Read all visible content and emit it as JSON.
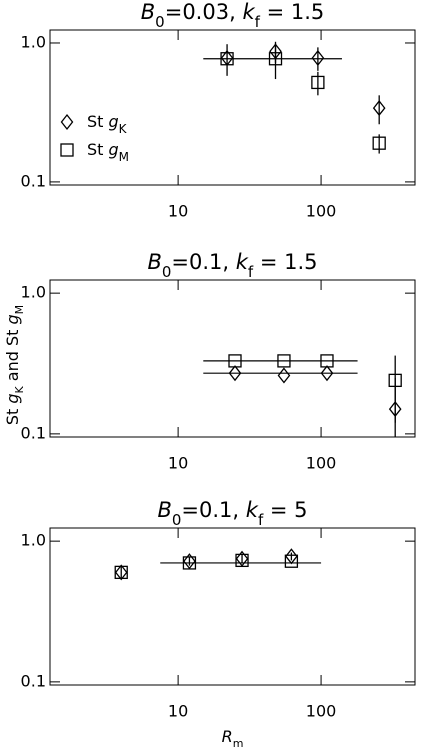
{
  "chart_data": [
    {
      "type": "scatter",
      "title": [
        "B",
        "0",
        "=0.03,  ",
        "k",
        "f",
        " = 1.5"
      ],
      "xlog": true,
      "ylog": true,
      "xlim": [
        1.27,
        454
      ],
      "ylim": [
        0.095,
        1.24
      ],
      "xticks": [
        10,
        100
      ],
      "yticks": [
        {
          "value": 1,
          "label": "1.0"
        },
        0.1
      ],
      "legend": "left",
      "series": [
        {
          "name": [
            "St ",
            "g",
            "K"
          ],
          "marker": "diamond",
          "color": "#000000",
          "x": [
            22,
            48,
            95,
            255
          ],
          "values": [
            0.78,
            0.87,
            0.78,
            0.34
          ],
          "errors": [
            0.2,
            0.15,
            0.15,
            0.08
          ]
        },
        {
          "name": [
            "St ",
            "g",
            "M"
          ],
          "marker": "square",
          "color": "#000000",
          "x": [
            22,
            48,
            95,
            255
          ],
          "values": [
            0.77,
            0.77,
            0.52,
            0.19
          ],
          "errors": [
            null,
            0.22,
            0.1,
            0.03
          ]
        }
      ],
      "lines": [
        {
          "x": [
            15,
            140
          ],
          "y": 0.77
        }
      ]
    },
    {
      "type": "scatter",
      "title": [
        "B",
        "0",
        "=0.1,  ",
        "k",
        "f",
        " = 1.5"
      ],
      "xlog": true,
      "ylog": true,
      "xlim": [
        1.27,
        454
      ],
      "ylim": [
        0.095,
        1.24
      ],
      "xticks": [
        10,
        100
      ],
      "yticks": [
        {
          "value": 1,
          "label": "1.0"
        },
        0.1
      ],
      "series": [
        {
          "marker": "diamond",
          "color": "#000000",
          "x": [
            25,
            55,
            110,
            330
          ],
          "values": [
            0.27,
            0.26,
            0.27,
            0.15
          ],
          "errors": [
            null,
            null,
            null,
            0.1
          ]
        },
        {
          "marker": "square",
          "color": "#000000",
          "x": [
            25,
            55,
            110,
            330
          ],
          "values": [
            0.33,
            0.33,
            0.33,
            0.24
          ],
          "errors": [
            null,
            null,
            null,
            0.12
          ]
        }
      ],
      "lines": [
        {
          "x": [
            15,
            180
          ],
          "y": 0.33
        },
        {
          "x": [
            15,
            180
          ],
          "y": 0.27
        }
      ]
    },
    {
      "type": "scatter",
      "title": [
        "B",
        "0",
        "=0.1,  ",
        "k",
        "f",
        " = 5"
      ],
      "xlog": true,
      "ylog": true,
      "xlim": [
        1.27,
        454
      ],
      "ylim": [
        0.095,
        1.24
      ],
      "xticks": [
        10,
        100
      ],
      "yticks": [
        {
          "value": 1,
          "label": "1.0"
        },
        0.1
      ],
      "xlabel": [
        "R",
        "m"
      ],
      "series": [
        {
          "marker": "diamond",
          "color": "#000000",
          "x": [
            4,
            12,
            28,
            62
          ],
          "values": [
            0.6,
            0.72,
            0.75,
            0.78
          ],
          "errors": [
            0.06,
            0.05,
            0.05,
            0.05
          ]
        },
        {
          "marker": "square",
          "color": "#000000",
          "x": [
            4,
            12,
            28,
            62
          ],
          "values": [
            0.6,
            0.7,
            0.73,
            0.72
          ],
          "errors": [
            null,
            null,
            null,
            null
          ]
        }
      ],
      "lines": [
        {
          "x": [
            7.5,
            100
          ],
          "y": 0.7
        }
      ]
    }
  ],
  "shared": {
    "y_label": [
      "St ",
      "g",
      "K",
      "   and   ",
      "St ",
      "g",
      "M"
    ]
  }
}
